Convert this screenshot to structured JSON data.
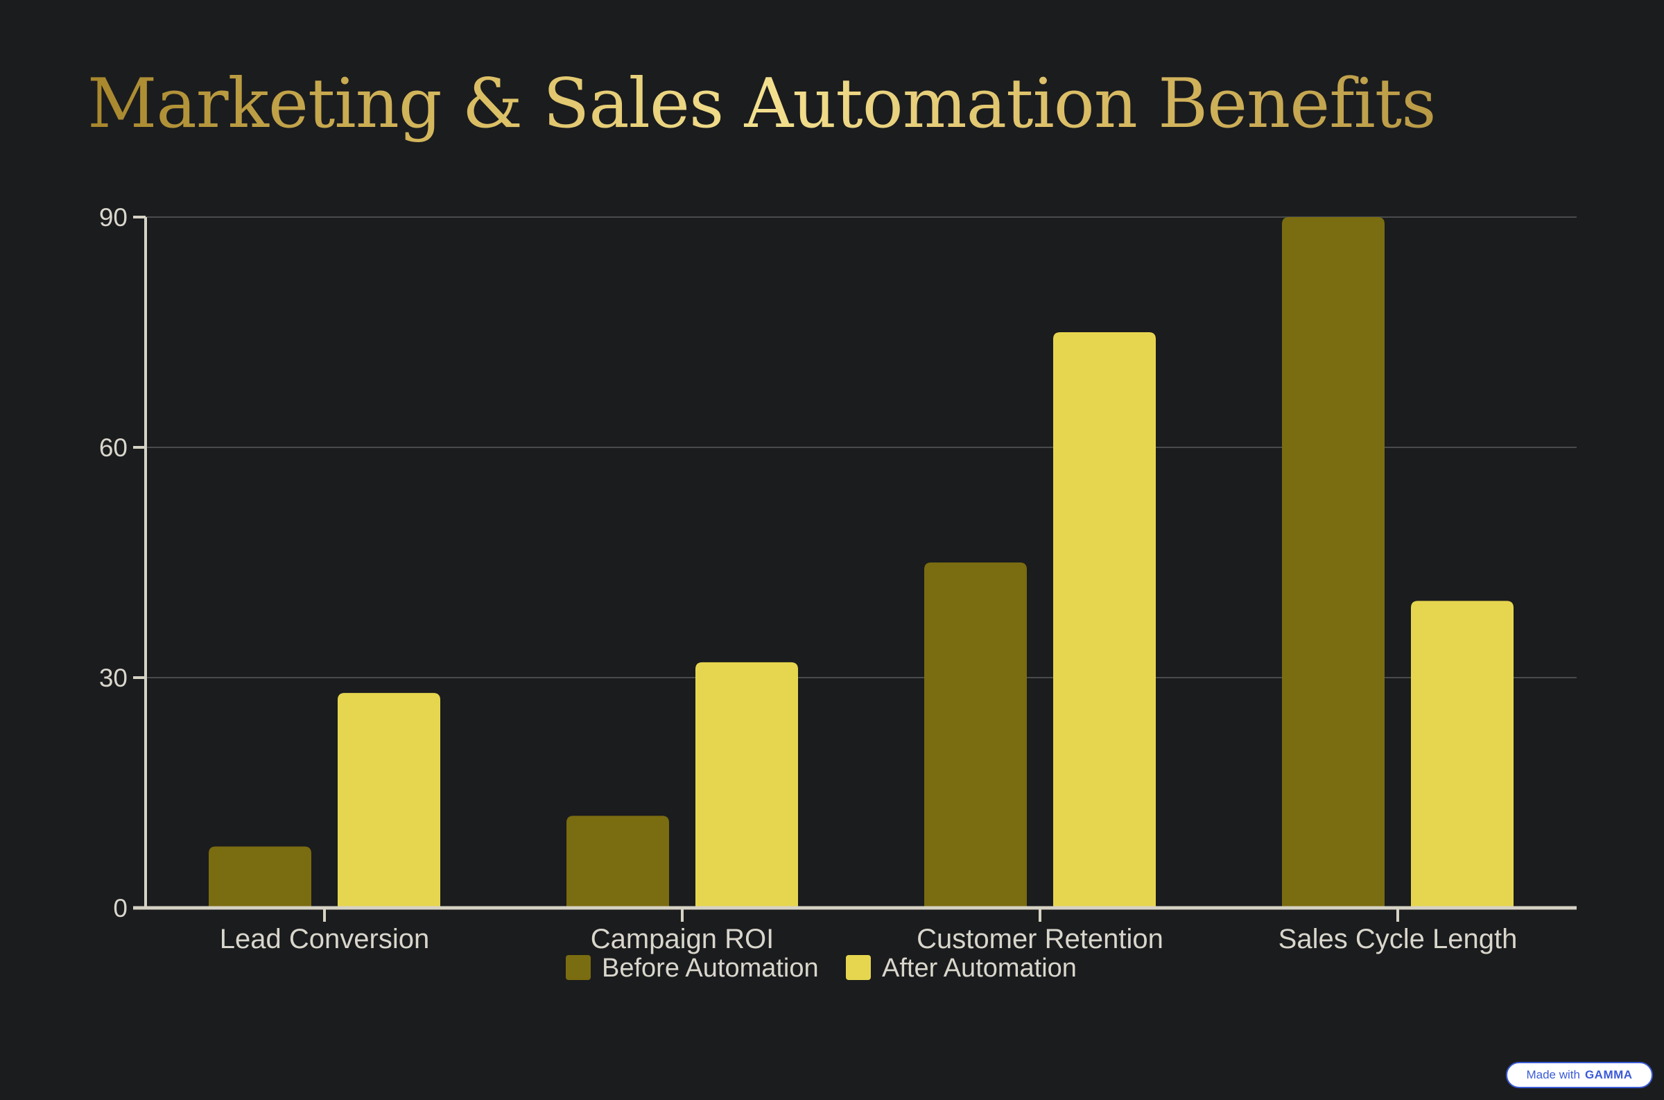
{
  "page": {
    "title": "Marketing & Sales Automation Benefits",
    "badge": {
      "prefix": "Made with",
      "brand": "GAMMA"
    }
  },
  "chart_data": {
    "type": "bar",
    "title": "",
    "xlabel": "",
    "ylabel": "",
    "categories": [
      "Lead Conversion",
      "Campaign ROI",
      "Customer Retention",
      "Sales Cycle Length"
    ],
    "series": [
      {
        "name": "Before Automation",
        "values": [
          8,
          12,
          45,
          90
        ],
        "color": "#7a6c10"
      },
      {
        "name": "After Automation",
        "values": [
          28,
          32,
          75,
          40
        ],
        "color": "#e6d64f"
      }
    ],
    "ylim": [
      0,
      90
    ],
    "yticks": [
      0,
      30,
      60,
      90
    ],
    "grid": true,
    "legend": "bottom-center",
    "colors": {
      "axis": "#d6d2c4",
      "grid": "#4a4b4d",
      "text": "#d9d6cc"
    }
  }
}
